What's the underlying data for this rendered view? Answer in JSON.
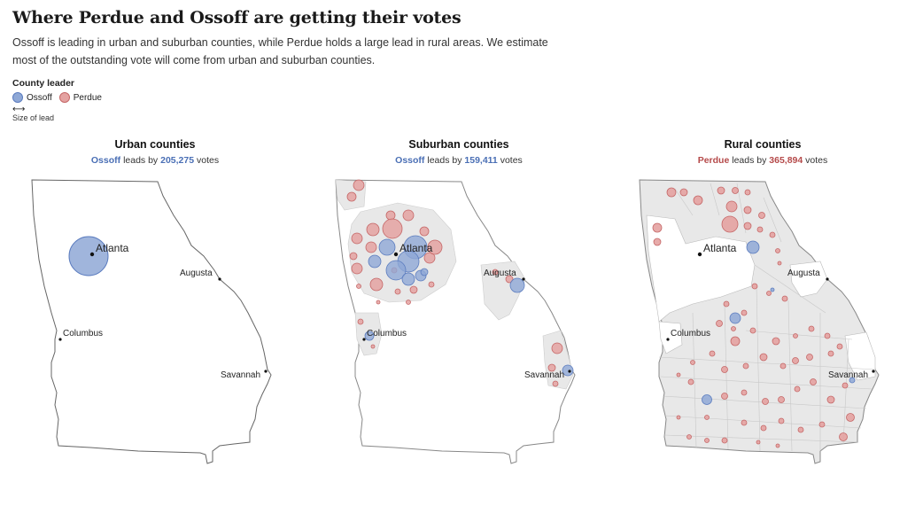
{
  "headline": "Where Perdue and Ossoff are getting their votes",
  "dek": "Ossoff is leading in urban and suburban counties, while Perdue holds a large lead in rural areas. We estimate most of the outstanding vote will come from urban and suburban counties.",
  "legend": {
    "title": "County leader",
    "ossoff": "Ossoff",
    "perdue": "Perdue",
    "arrow": "⟷",
    "size_label": "Size of lead"
  },
  "colors": {
    "ossoff": "#5b7cbf",
    "perdue": "#c56767",
    "county_fill": "#ebebeb"
  },
  "panels": [
    {
      "id": "urban",
      "title": "Urban counties",
      "leader": "Ossoff",
      "leads_by": "leads by",
      "margin": "205,275",
      "votes": "votes"
    },
    {
      "id": "suburban",
      "title": "Suburban counties",
      "leader": "Ossoff",
      "leads_by": "leads by",
      "margin": "159,411",
      "votes": "votes"
    },
    {
      "id": "rural",
      "title": "Rural counties",
      "leader": "Perdue",
      "leads_by": "leads by",
      "margin": "365,894",
      "votes": "votes"
    }
  ],
  "cities": {
    "atlanta": "Atlanta",
    "augusta": "Augusta",
    "columbus": "Columbus",
    "savannah": "Savannah"
  }
}
